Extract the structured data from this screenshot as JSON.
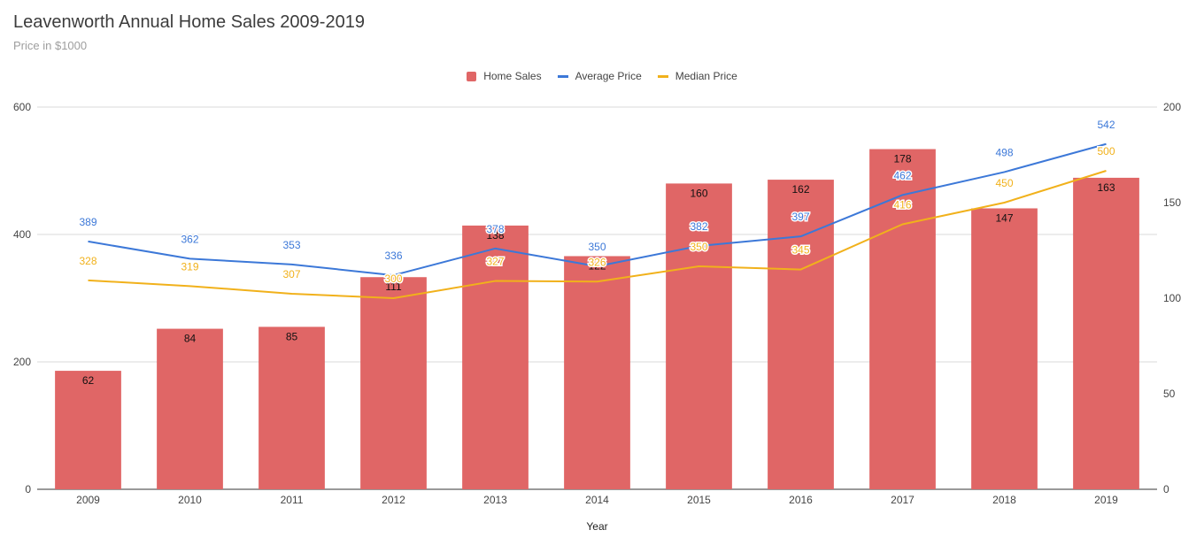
{
  "chart_data": {
    "type": "bar",
    "title": "Leavenworth Annual Home Sales 2009-2019",
    "subtitle": "Price in $1000",
    "xlabel": "Year",
    "categories": [
      "2009",
      "2010",
      "2011",
      "2012",
      "2013",
      "2014",
      "2015",
      "2016",
      "2017",
      "2018",
      "2019"
    ],
    "left_axis": {
      "ticks": [
        "0",
        "200",
        "400",
        "600"
      ],
      "range": [
        0,
        600
      ]
    },
    "right_axis": {
      "ticks": [
        "0",
        "50",
        "100",
        "150",
        "200"
      ],
      "range": [
        0,
        200
      ]
    },
    "legend_position": "top",
    "grid": true,
    "series": [
      {
        "name": "Home Sales",
        "kind": "bar",
        "axis": "right",
        "color": "#e06666",
        "values": [
          62,
          84,
          85,
          111,
          138,
          122,
          160,
          162,
          178,
          147,
          163
        ],
        "labels": [
          "62",
          "84",
          "85",
          "111",
          "138",
          "122",
          "160",
          "162",
          "178",
          "147",
          "163"
        ]
      },
      {
        "name": "Average Price",
        "kind": "line",
        "axis": "left",
        "color": "#3c78d8",
        "values": [
          389,
          362,
          353,
          336,
          378,
          350,
          382,
          397,
          462,
          498,
          542
        ],
        "labels": [
          "389",
          "362",
          "353",
          "336",
          "378",
          "350",
          "382",
          "397",
          "462",
          "498",
          "542"
        ]
      },
      {
        "name": "Median Price",
        "kind": "line",
        "axis": "left",
        "color": "#f1b11b",
        "values": [
          328,
          319,
          307,
          300,
          327,
          326,
          350,
          345,
          416,
          450,
          500
        ],
        "labels": [
          "328",
          "319",
          "307",
          "300",
          "327",
          "326",
          "350",
          "345",
          "416",
          "450",
          "500"
        ]
      }
    ]
  }
}
